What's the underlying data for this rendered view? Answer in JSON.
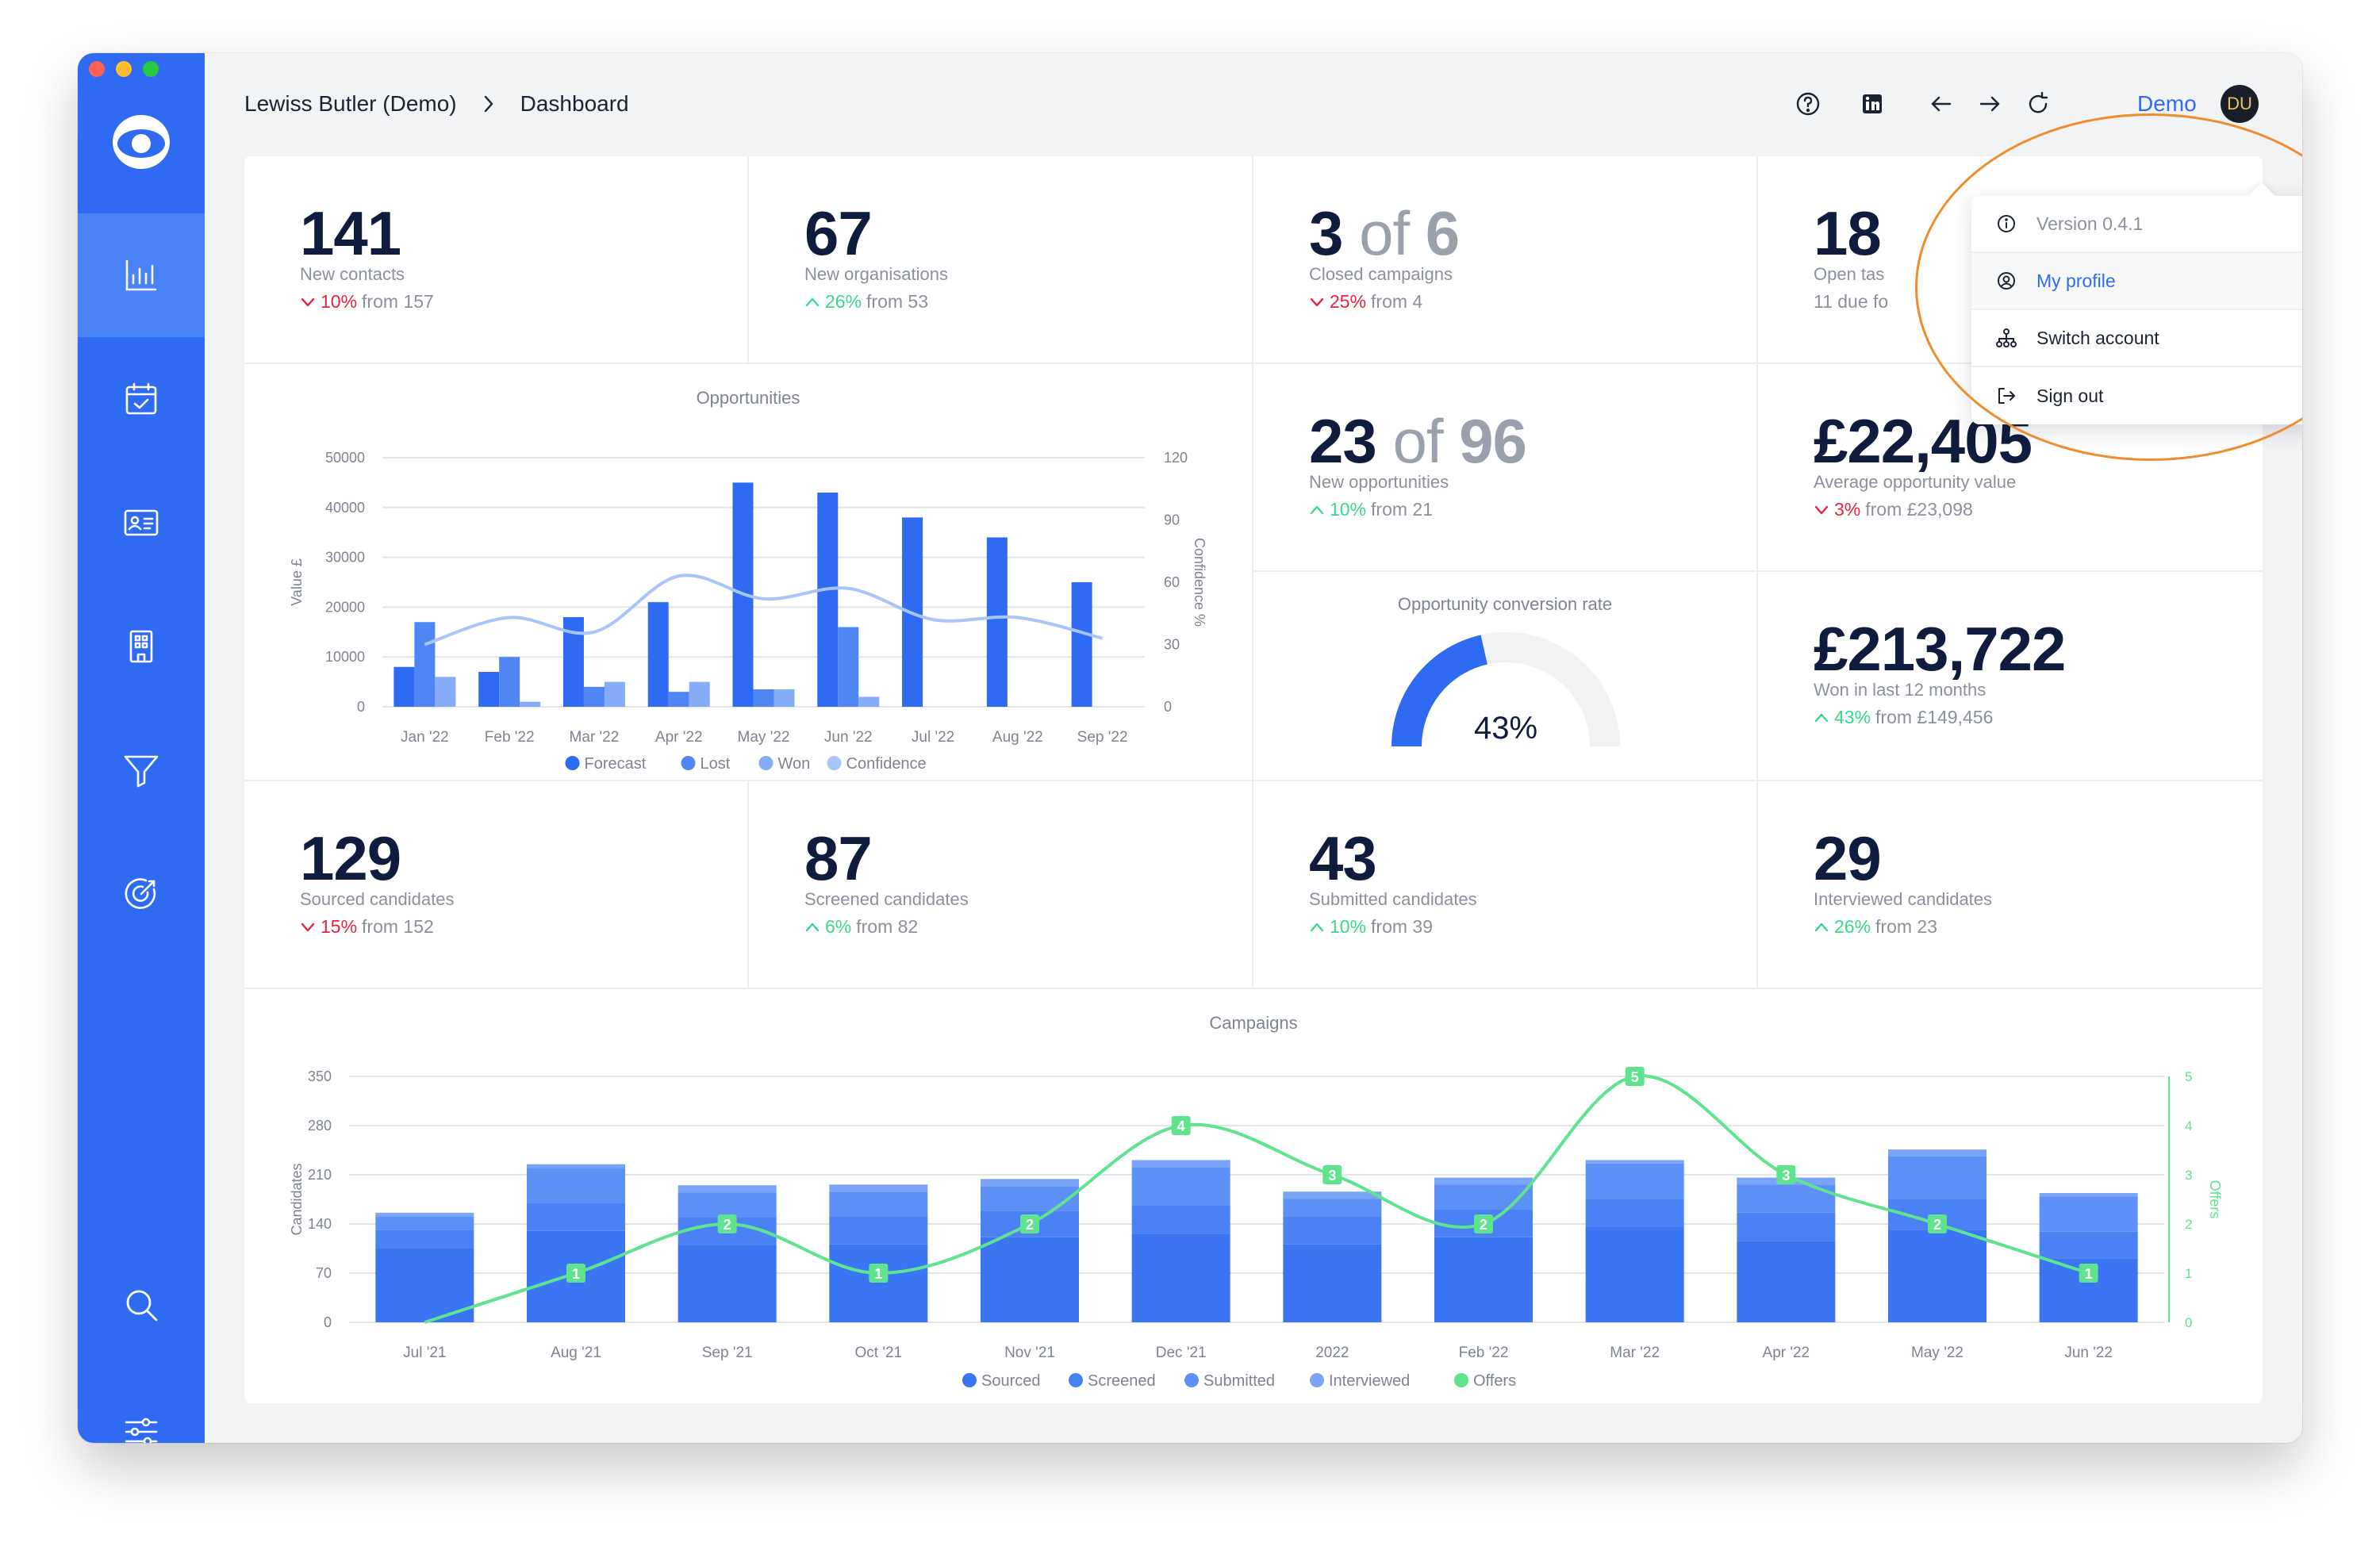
{
  "breadcrumb": {
    "account": "Lewiss Butler (Demo)",
    "page": "Dashboard"
  },
  "topbar": {
    "icons": [
      "help-icon",
      "linkedin-icon",
      "back-arrow-icon",
      "forward-arrow-icon",
      "refresh-icon"
    ],
    "user_name": "Demo",
    "avatar_initials": "DU"
  },
  "sidebar": {
    "items": [
      {
        "icon": "chart-icon",
        "active": true
      },
      {
        "icon": "calendar-check-icon",
        "active": false
      },
      {
        "icon": "contact-card-icon",
        "active": false
      },
      {
        "icon": "building-icon",
        "active": false
      },
      {
        "icon": "funnel-icon",
        "active": false
      },
      {
        "icon": "target-icon",
        "active": false
      },
      {
        "icon": "search-icon",
        "active": false
      },
      {
        "icon": "sliders-icon",
        "active": false
      }
    ]
  },
  "stats": {
    "new_contacts": {
      "value": "141",
      "label": "New contacts",
      "pct": "10%",
      "dir": "down",
      "from": "from 157"
    },
    "new_orgs": {
      "value": "67",
      "label": "New organisations",
      "pct": "26%",
      "dir": "up",
      "from": "from 53"
    },
    "closed_campaigns": {
      "value": "3",
      "of": "of",
      "total": "6",
      "label": "Closed campaigns",
      "pct": "25%",
      "dir": "down",
      "from": "from 4"
    },
    "open_tasks": {
      "value": "18",
      "label": "Open tas",
      "sub": "11 due fo"
    },
    "new_opps": {
      "value": "23",
      "of": "of",
      "total": "96",
      "label": "New opportunities",
      "pct": "10%",
      "dir": "up",
      "from": "from 21"
    },
    "avg_opp_value": {
      "value": "£22,405",
      "label": "Average opportunity value",
      "pct": "3%",
      "dir": "down",
      "from": "from £23,098"
    },
    "won_12m": {
      "value": "£213,722",
      "label": "Won in last 12 months",
      "pct": "43%",
      "dir": "up",
      "from": "from £149,456"
    },
    "sourced": {
      "value": "129",
      "label": "Sourced candidates",
      "pct": "15%",
      "dir": "down",
      "from": "from 152"
    },
    "screened": {
      "value": "87",
      "label": "Screened candidates",
      "pct": "6%",
      "dir": "up",
      "from": "from 82"
    },
    "submitted": {
      "value": "43",
      "label": "Submitted candidates",
      "pct": "10%",
      "dir": "up",
      "from": "from 39"
    },
    "interviewed": {
      "value": "29",
      "label": "Interviewed candidates",
      "pct": "26%",
      "dir": "up",
      "from": "from 23"
    }
  },
  "conversion": {
    "title": "Opportunity conversion rate",
    "value": 43,
    "label": "43%"
  },
  "dropdown": {
    "version": "Version 0.4.1",
    "my_profile": "My profile",
    "switch_account": "Switch account",
    "sign_out": "Sign out"
  },
  "colors": {
    "primary": "#2f6bf2",
    "down": "#e5243b",
    "up": "#39d98a",
    "highlight": "#f08c2d"
  },
  "chart_data": [
    {
      "type": "bar",
      "title": "Opportunities",
      "categories": [
        "Jan '22",
        "Feb '22",
        "Mar '22",
        "Apr '22",
        "May '22",
        "Jun '22",
        "Jul '22",
        "Aug '22",
        "Sep '22"
      ],
      "ylabel": "Value £",
      "y2label": "Confidence %",
      "ylim": [
        0,
        50000
      ],
      "yticks": [
        "0",
        "10000",
        "20000",
        "30000",
        "40000",
        "50000"
      ],
      "y2lim": [
        0,
        120
      ],
      "y2ticks": [
        "0",
        "30",
        "60",
        "90",
        "120"
      ],
      "series": [
        {
          "name": "Forecast",
          "color": "#2f6bf2",
          "values": [
            8000,
            7000,
            18000,
            21000,
            45000,
            43000,
            38000,
            34000,
            25000
          ]
        },
        {
          "name": "Lost",
          "color": "#4f86f4",
          "values": [
            17000,
            10000,
            4000,
            3000,
            3500,
            16000,
            0,
            0,
            0
          ]
        },
        {
          "name": "Won",
          "color": "#86acf7",
          "values": [
            6000,
            1000,
            5000,
            5000,
            3500,
            2000,
            0,
            0,
            0
          ]
        },
        {
          "name": "Confidence",
          "color": "#a9c4f8",
          "type": "line",
          "values": [
            30,
            43,
            36,
            63,
            52,
            57,
            42,
            43,
            33
          ]
        }
      ]
    },
    {
      "type": "bar",
      "title": "Campaigns",
      "categories": [
        "Jul '21",
        "Aug '21",
        "Sep '21",
        "Oct '21",
        "Nov '21",
        "Dec '21",
        "2022",
        "Feb '22",
        "Mar '22",
        "Apr '22",
        "May '22",
        "Jun '22"
      ],
      "ylabel": "Candidates",
      "y2label": "Offers",
      "ylim": [
        0,
        350
      ],
      "yticks": [
        "0",
        "70",
        "140",
        "210",
        "280",
        "350"
      ],
      "y2lim": [
        0,
        5
      ],
      "y2ticks": [
        "0",
        "1",
        "2",
        "3",
        "4",
        "5"
      ],
      "stacked": true,
      "series": [
        {
          "name": "Sourced",
          "color": "#3a75f3",
          "values": [
            106,
            130,
            110,
            111,
            121,
            126,
            111,
            121,
            136,
            116,
            131,
            91
          ]
        },
        {
          "name": "Screened",
          "color": "#4a82f5",
          "values": [
            25,
            40,
            40,
            40,
            38,
            40,
            40,
            40,
            40,
            40,
            45,
            38
          ]
        },
        {
          "name": "Submitted",
          "color": "#5d90f6",
          "values": [
            20,
            50,
            35,
            35,
            35,
            55,
            25,
            35,
            50,
            40,
            60,
            50
          ]
        },
        {
          "name": "Interviewed",
          "color": "#7aa4f7",
          "values": [
            5,
            5,
            10,
            10,
            10,
            10,
            10,
            10,
            5,
            10,
            10,
            5
          ]
        },
        {
          "name": "Offers",
          "color": "#5fe38f",
          "type": "line",
          "axis": "right",
          "values": [
            0,
            1,
            2,
            1,
            2,
            4,
            3,
            2,
            5,
            3,
            2,
            1
          ]
        }
      ]
    }
  ]
}
